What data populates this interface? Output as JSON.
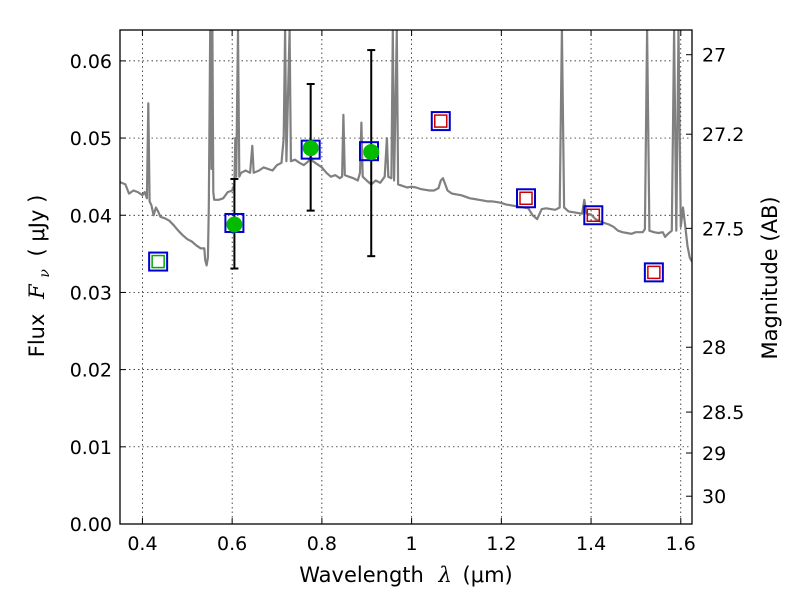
{
  "chart_data": {
    "type": "scatter",
    "xlabel_main": "Wavelength",
    "xlabel_symbol": "λ",
    "xlabel_unit": "(μm)",
    "ylabel_main": "Flux",
    "ylabel_symbol": "F",
    "ylabel_subscript": "ν",
    "ylabel_unit": "( μJy )",
    "y2label": "Magnitude (AB)",
    "xlim": [
      0.35,
      1.625
    ],
    "ylim": [
      0.0,
      0.064
    ],
    "x_ticks": [
      0.4,
      0.6,
      0.8,
      1.0,
      1.2,
      1.4,
      1.6
    ],
    "x_tick_labels": [
      "0.4",
      "0.6",
      "0.8",
      "1",
      "1.2",
      "1.4",
      "1.6"
    ],
    "y_ticks": [
      0.0,
      0.01,
      0.02,
      0.03,
      0.04,
      0.05,
      0.06
    ],
    "y_tick_labels": [
      "0.00",
      "0.01",
      "0.02",
      "0.03",
      "0.04",
      "0.05",
      "0.06"
    ],
    "y2_ticks": [
      {
        "label": "27",
        "flux": 0.0608
      },
      {
        "label": "27.2",
        "flux": 0.0505
      },
      {
        "label": "27.5",
        "flux": 0.0383
      },
      {
        "label": "28",
        "flux": 0.0229
      },
      {
        "label": "28.5",
        "flux": 0.0145
      },
      {
        "label": "29",
        "flux": 0.0092
      },
      {
        "label": "30",
        "flux": 0.0036
      }
    ],
    "grid": true,
    "colors": {
      "spectrum": "#808080",
      "model_box": "#0000cc",
      "green_box": "#00aa00",
      "red_box": "#cc0000",
      "detection": "#00bb00",
      "errorbar": "#000000"
    },
    "spectrum": [
      [
        0.35,
        0.0443
      ],
      [
        0.362,
        0.044
      ],
      [
        0.37,
        0.0428
      ],
      [
        0.38,
        0.0432
      ],
      [
        0.39,
        0.043
      ],
      [
        0.4,
        0.0426
      ],
      [
        0.405,
        0.043
      ],
      [
        0.41,
        0.0422
      ],
      [
        0.413,
        0.0545
      ],
      [
        0.416,
        0.0418
      ],
      [
        0.42,
        0.0413
      ],
      [
        0.425,
        0.04
      ],
      [
        0.43,
        0.041
      ],
      [
        0.435,
        0.0405
      ],
      [
        0.44,
        0.0398
      ],
      [
        0.45,
        0.0396
      ],
      [
        0.46,
        0.0393
      ],
      [
        0.47,
        0.0387
      ],
      [
        0.48,
        0.038
      ],
      [
        0.49,
        0.0374
      ],
      [
        0.5,
        0.0369
      ],
      [
        0.51,
        0.0366
      ],
      [
        0.52,
        0.0361
      ],
      [
        0.53,
        0.0357
      ],
      [
        0.538,
        0.0357
      ],
      [
        0.54,
        0.0342
      ],
      [
        0.543,
        0.0335
      ],
      [
        0.546,
        0.0345
      ],
      [
        0.548,
        0.041
      ],
      [
        0.551,
        0.064
      ],
      [
        0.554,
        0.046
      ],
      [
        0.556,
        0.064
      ],
      [
        0.558,
        0.043
      ],
      [
        0.56,
        0.042
      ],
      [
        0.57,
        0.042
      ],
      [
        0.58,
        0.0422
      ],
      [
        0.59,
        0.043
      ],
      [
        0.6,
        0.0432
      ],
      [
        0.605,
        0.044
      ],
      [
        0.607,
        0.05
      ],
      [
        0.609,
        0.045
      ],
      [
        0.613,
        0.064
      ],
      [
        0.616,
        0.045
      ],
      [
        0.62,
        0.0455
      ],
      [
        0.63,
        0.0458
      ],
      [
        0.64,
        0.0455
      ],
      [
        0.645,
        0.049
      ],
      [
        0.648,
        0.0455
      ],
      [
        0.66,
        0.0458
      ],
      [
        0.67,
        0.0462
      ],
      [
        0.68,
        0.046
      ],
      [
        0.69,
        0.0458
      ],
      [
        0.7,
        0.0465
      ],
      [
        0.71,
        0.0468
      ],
      [
        0.715,
        0.05
      ],
      [
        0.718,
        0.064
      ],
      [
        0.721,
        0.047
      ],
      [
        0.728,
        0.064
      ],
      [
        0.731,
        0.047
      ],
      [
        0.74,
        0.0472
      ],
      [
        0.75,
        0.0468
      ],
      [
        0.76,
        0.0465
      ],
      [
        0.77,
        0.047
      ],
      [
        0.775,
        0.0476
      ],
      [
        0.78,
        0.047
      ],
      [
        0.79,
        0.0466
      ],
      [
        0.8,
        0.0462
      ],
      [
        0.81,
        0.0455
      ],
      [
        0.82,
        0.045
      ],
      [
        0.83,
        0.0452
      ],
      [
        0.84,
        0.0448
      ],
      [
        0.845,
        0.045
      ],
      [
        0.848,
        0.053
      ],
      [
        0.851,
        0.0452
      ],
      [
        0.86,
        0.045
      ],
      [
        0.87,
        0.0448
      ],
      [
        0.88,
        0.0445
      ],
      [
        0.885,
        0.0455
      ],
      [
        0.888,
        0.052
      ],
      [
        0.891,
        0.045
      ],
      [
        0.9,
        0.0445
      ],
      [
        0.91,
        0.044
      ],
      [
        0.92,
        0.0445
      ],
      [
        0.93,
        0.0442
      ],
      [
        0.94,
        0.045
      ],
      [
        0.945,
        0.05
      ],
      [
        0.948,
        0.045
      ],
      [
        0.955,
        0.0448
      ],
      [
        0.958,
        0.064
      ],
      [
        0.961,
        0.0445
      ],
      [
        0.967,
        0.064
      ],
      [
        0.97,
        0.044
      ],
      [
        0.98,
        0.0438
      ],
      [
        0.99,
        0.0436
      ],
      [
        1.0,
        0.0437
      ],
      [
        1.01,
        0.0436
      ],
      [
        1.02,
        0.0434
      ],
      [
        1.03,
        0.0433
      ],
      [
        1.04,
        0.0432
      ],
      [
        1.05,
        0.0432
      ],
      [
        1.06,
        0.0435
      ],
      [
        1.065,
        0.0445
      ],
      [
        1.07,
        0.0448
      ],
      [
        1.075,
        0.044
      ],
      [
        1.08,
        0.0432
      ],
      [
        1.09,
        0.0428
      ],
      [
        1.1,
        0.0427
      ],
      [
        1.11,
        0.0426
      ],
      [
        1.12,
        0.0424
      ],
      [
        1.13,
        0.0422
      ],
      [
        1.14,
        0.0421
      ],
      [
        1.15,
        0.042
      ],
      [
        1.16,
        0.0419
      ],
      [
        1.17,
        0.0418
      ],
      [
        1.18,
        0.0418
      ],
      [
        1.19,
        0.0417
      ],
      [
        1.2,
        0.0416
      ],
      [
        1.21,
        0.0414
      ],
      [
        1.22,
        0.0413
      ],
      [
        1.23,
        0.0412
      ],
      [
        1.24,
        0.0411
      ],
      [
        1.25,
        0.041
      ],
      [
        1.26,
        0.0409
      ],
      [
        1.27,
        0.04
      ],
      [
        1.28,
        0.0395
      ],
      [
        1.29,
        0.0408
      ],
      [
        1.3,
        0.0409
      ],
      [
        1.31,
        0.0408
      ],
      [
        1.32,
        0.0407
      ],
      [
        1.33,
        0.041
      ],
      [
        1.335,
        0.064
      ],
      [
        1.34,
        0.041
      ],
      [
        1.35,
        0.0405
      ],
      [
        1.36,
        0.0404
      ],
      [
        1.37,
        0.0403
      ],
      [
        1.38,
        0.0402
      ],
      [
        1.385,
        0.042
      ],
      [
        1.39,
        0.0402
      ],
      [
        1.4,
        0.0401
      ],
      [
        1.41,
        0.0395
      ],
      [
        1.42,
        0.0392
      ],
      [
        1.43,
        0.039
      ],
      [
        1.44,
        0.0388
      ],
      [
        1.45,
        0.0385
      ],
      [
        1.46,
        0.038
      ],
      [
        1.47,
        0.0378
      ],
      [
        1.48,
        0.0377
      ],
      [
        1.49,
        0.0376
      ],
      [
        1.5,
        0.0378
      ],
      [
        1.51,
        0.0378
      ],
      [
        1.515,
        0.0378
      ],
      [
        1.52,
        0.0382
      ],
      [
        1.525,
        0.064
      ],
      [
        1.53,
        0.038
      ],
      [
        1.54,
        0.0378
      ],
      [
        1.55,
        0.0377
      ],
      [
        1.56,
        0.0378
      ],
      [
        1.565,
        0.0372
      ],
      [
        1.57,
        0.0375
      ],
      [
        1.58,
        0.038
      ],
      [
        1.585,
        0.064
      ],
      [
        1.59,
        0.038
      ],
      [
        1.595,
        0.064
      ],
      [
        1.6,
        0.0385
      ],
      [
        1.605,
        0.041
      ],
      [
        1.61,
        0.0385
      ],
      [
        1.615,
        0.036
      ],
      [
        1.62,
        0.0345
      ],
      [
        1.625,
        0.034
      ]
    ],
    "model_points": [
      {
        "x": 0.435,
        "y": 0.034,
        "inner": "green"
      },
      {
        "x": 0.605,
        "y": 0.039,
        "inner": "none"
      },
      {
        "x": 0.775,
        "y": 0.0485,
        "inner": "none"
      },
      {
        "x": 0.905,
        "y": 0.0483,
        "inner": "none"
      },
      {
        "x": 1.065,
        "y": 0.0522,
        "inner": "red"
      },
      {
        "x": 1.255,
        "y": 0.0422,
        "inner": "red"
      },
      {
        "x": 1.405,
        "y": 0.04,
        "inner": "red"
      },
      {
        "x": 1.54,
        "y": 0.0326,
        "inner": "red"
      }
    ],
    "detections": [
      {
        "x": 0.605,
        "y": 0.0388,
        "err_low": 0.0331,
        "err_high": 0.0447
      },
      {
        "x": 0.775,
        "y": 0.0487,
        "err_low": 0.0406,
        "err_high": 0.057
      },
      {
        "x": 0.91,
        "y": 0.0482,
        "err_low": 0.0347,
        "err_high": 0.0614
      }
    ]
  }
}
